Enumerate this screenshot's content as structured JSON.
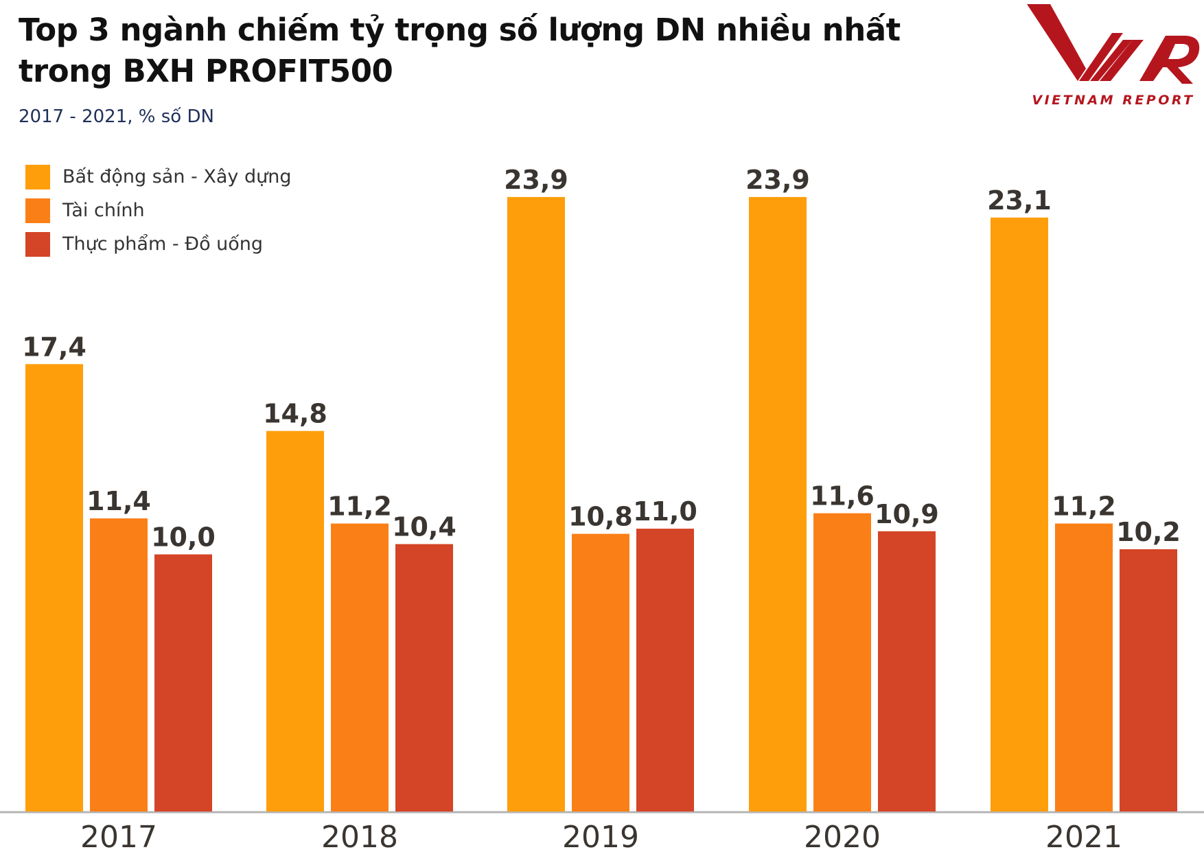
{
  "chart_data": {
    "type": "bar",
    "title": "Top 3 ngành chiếm tỷ trọng số lượng DN nhiều nhất trong BXH PROFIT500",
    "subtitle": "2017 - 2021, % số DN",
    "categories": [
      "2017",
      "2018",
      "2019",
      "2020",
      "2021"
    ],
    "series": [
      {
        "name": "Bất động sản - Xây dựng",
        "color": "#FF9E0B",
        "values": [
          17.4,
          14.8,
          23.9,
          23.9,
          23.1
        ],
        "labels": [
          "17,4",
          "14,8",
          "23,9",
          "23,9",
          "23,1"
        ]
      },
      {
        "name": "Tài chính",
        "color": "#FB7F17",
        "values": [
          11.4,
          11.2,
          10.8,
          11.6,
          11.2
        ],
        "labels": [
          "11,4",
          "11,2",
          "10,8",
          "11,6",
          "11,2"
        ]
      },
      {
        "name": "Thực phẩm - Đồ uống",
        "color": "#D44426",
        "values": [
          10.0,
          10.4,
          11.0,
          10.9,
          10.2
        ],
        "labels": [
          "10,0",
          "10,4",
          "11,0",
          "10,9",
          "10,2"
        ]
      }
    ],
    "xlabel": "",
    "ylabel": "",
    "ylim": [
      0,
      26
    ],
    "grid": false,
    "legend_position": "top-left"
  },
  "logo": {
    "text": "VNR",
    "caption": "VIETNAM REPORT",
    "color": "#B5161E"
  }
}
